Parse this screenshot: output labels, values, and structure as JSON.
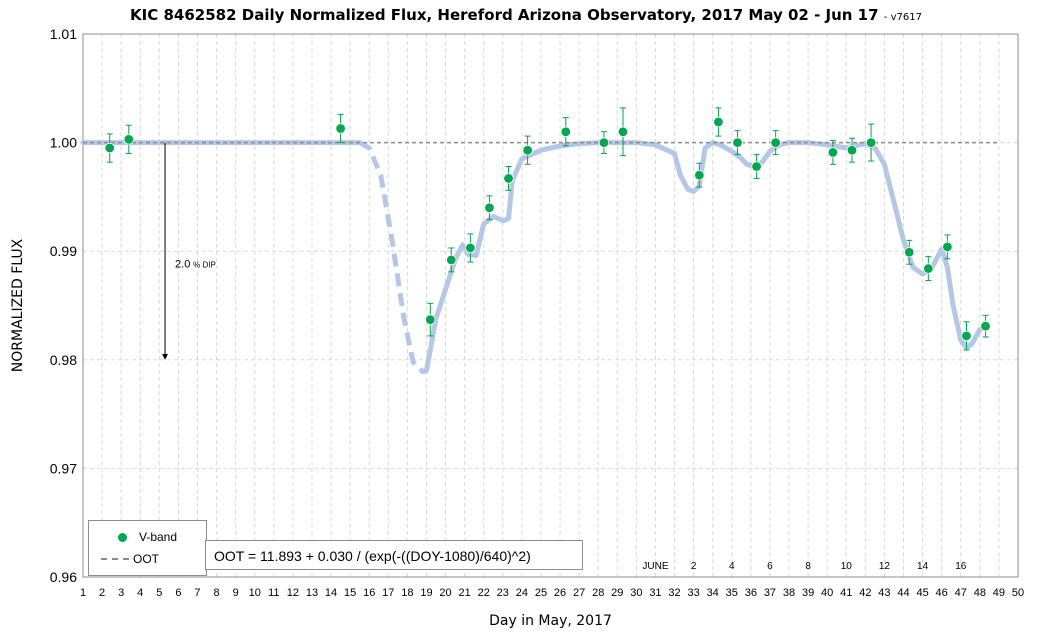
{
  "title": "KIC 8462582 Daily Normalized Flux, Hereford Arizona Observatory, 2017 May 02 - Jun 17",
  "version": "- v7617",
  "xlabel": "Day in May, 2017",
  "ylabel": "NORMALIZED FLUX",
  "dip_label": "2.0",
  "dip_suffix": "% DIP",
  "formula": "OOT = 11.893 + 0.030 / (exp(-((DOY-1080)/640)^2)",
  "legend": {
    "vband": "V-band",
    "oot": "OOT"
  },
  "colors": {
    "points": "#00a650",
    "errorbar": "#00a650",
    "model": "#b4c7e7",
    "oot": "#8c8c8c",
    "grid": "#d9d9d9"
  },
  "chart_data": {
    "type": "scatter",
    "x_ticks": [
      1,
      2,
      3,
      4,
      5,
      6,
      7,
      8,
      9,
      10,
      11,
      12,
      13,
      14,
      15,
      16,
      17,
      18,
      19,
      20,
      21,
      22,
      23,
      24,
      25,
      26,
      27,
      28,
      29,
      30,
      31,
      32,
      33,
      34,
      35,
      36,
      37,
      38,
      39,
      40,
      41,
      42,
      43,
      44,
      45,
      46,
      47,
      48,
      49,
      50
    ],
    "y_ticks": [
      "0.96",
      "0.97",
      "0.98",
      "0.99",
      "1.00",
      "1.01"
    ],
    "xlim": [
      1,
      50
    ],
    "ylim": [
      0.96,
      1.01
    ],
    "june_labels": [
      {
        "x": 31.0,
        "label": "JUNE"
      },
      {
        "x": 33.0,
        "label": "2"
      },
      {
        "x": 35.0,
        "label": "4"
      },
      {
        "x": 37.0,
        "label": "6"
      },
      {
        "x": 39.0,
        "label": "8"
      },
      {
        "x": 41.0,
        "label": "10"
      },
      {
        "x": 43.0,
        "label": "12"
      },
      {
        "x": 45.0,
        "label": "14"
      },
      {
        "x": 47.0,
        "label": "16"
      }
    ],
    "series": [
      {
        "name": "V-band",
        "x": [
          2.4,
          3.4,
          14.5,
          19.2,
          20.3,
          21.3,
          22.3,
          23.3,
          24.3,
          26.3,
          28.3,
          29.3,
          33.3,
          34.3,
          35.3,
          36.3,
          37.3,
          40.3,
          41.3,
          42.3,
          44.3,
          45.3,
          46.3,
          47.3,
          48.3
        ],
        "y": [
          0.9995,
          1.0003,
          1.0013,
          0.9837,
          0.9892,
          0.9903,
          0.994,
          0.9967,
          0.9993,
          1.001,
          1.0,
          1.001,
          0.997,
          1.0019,
          1.0,
          0.9978,
          1.0,
          0.9991,
          0.9993,
          1.0,
          0.9899,
          0.9884,
          0.9904,
          0.9822,
          0.9831
        ],
        "err": [
          0.0013,
          0.0013,
          0.0013,
          0.0015,
          0.0011,
          0.0013,
          0.0011,
          0.0011,
          0.0013,
          0.0013,
          0.001,
          0.0022,
          0.0011,
          0.0013,
          0.0011,
          0.0011,
          0.0011,
          0.0011,
          0.0011,
          0.0017,
          0.0011,
          0.0011,
          0.0011,
          0.0013,
          0.001
        ]
      },
      {
        "name": "OOT",
        "x": [
          1,
          49
        ],
        "y": [
          1.0,
          1.0
        ]
      }
    ],
    "model_solid_1": {
      "x": [
        1,
        15.5
      ],
      "y": [
        1.0,
        1.0
      ]
    },
    "model_dashed": {
      "x": [
        15.5,
        16.0,
        16.6,
        17.2,
        17.8,
        18.3,
        18.8,
        19.0
      ],
      "y": [
        1.0,
        0.9995,
        0.997,
        0.991,
        0.984,
        0.9798,
        0.9789,
        0.979
      ]
    },
    "model_solid_2": {
      "x": [
        19.0,
        19.5,
        20.0,
        20.5,
        20.9,
        21.2,
        21.6,
        22.0,
        22.5,
        23.0,
        23.3,
        23.5,
        24.0,
        25.0,
        26.0,
        27.0,
        28.0,
        29.0,
        30.0,
        31.0,
        32.0,
        32.3,
        32.7,
        33.0,
        33.3,
        33.6,
        34.0,
        34.4,
        35.0,
        35.4,
        35.8,
        36.2,
        36.6,
        37.0,
        37.5,
        38.0,
        39.0,
        40.0,
        41.0,
        42.0,
        42.5,
        43.0,
        43.5,
        44.0,
        44.5,
        45.0,
        45.5,
        46.0,
        46.3,
        46.6,
        47.0,
        47.3,
        47.6,
        48.0
      ],
      "y": [
        0.979,
        0.9838,
        0.9865,
        0.9892,
        0.9906,
        0.9897,
        0.9896,
        0.9925,
        0.9932,
        0.9928,
        0.993,
        0.9965,
        0.9985,
        0.9993,
        0.9997,
        0.9999,
        1.0,
        1.0,
        1.0,
        0.9998,
        0.999,
        0.997,
        0.9957,
        0.9955,
        0.996,
        0.9995,
        1.0,
        0.9998,
        0.9992,
        0.9987,
        0.998,
        0.9978,
        0.9982,
        0.9992,
        0.9998,
        1.0,
        1.0,
        0.9998,
        0.9995,
        0.9999,
        0.9995,
        0.998,
        0.9945,
        0.991,
        0.9885,
        0.9879,
        0.9885,
        0.9902,
        0.9885,
        0.985,
        0.9818,
        0.9811,
        0.9815,
        0.9828
      ]
    },
    "dip_arrow": {
      "x": 5.3,
      "y_from": 1.0,
      "y_to": 0.98
    },
    "legend_position": "bottom-left",
    "grid": true
  }
}
